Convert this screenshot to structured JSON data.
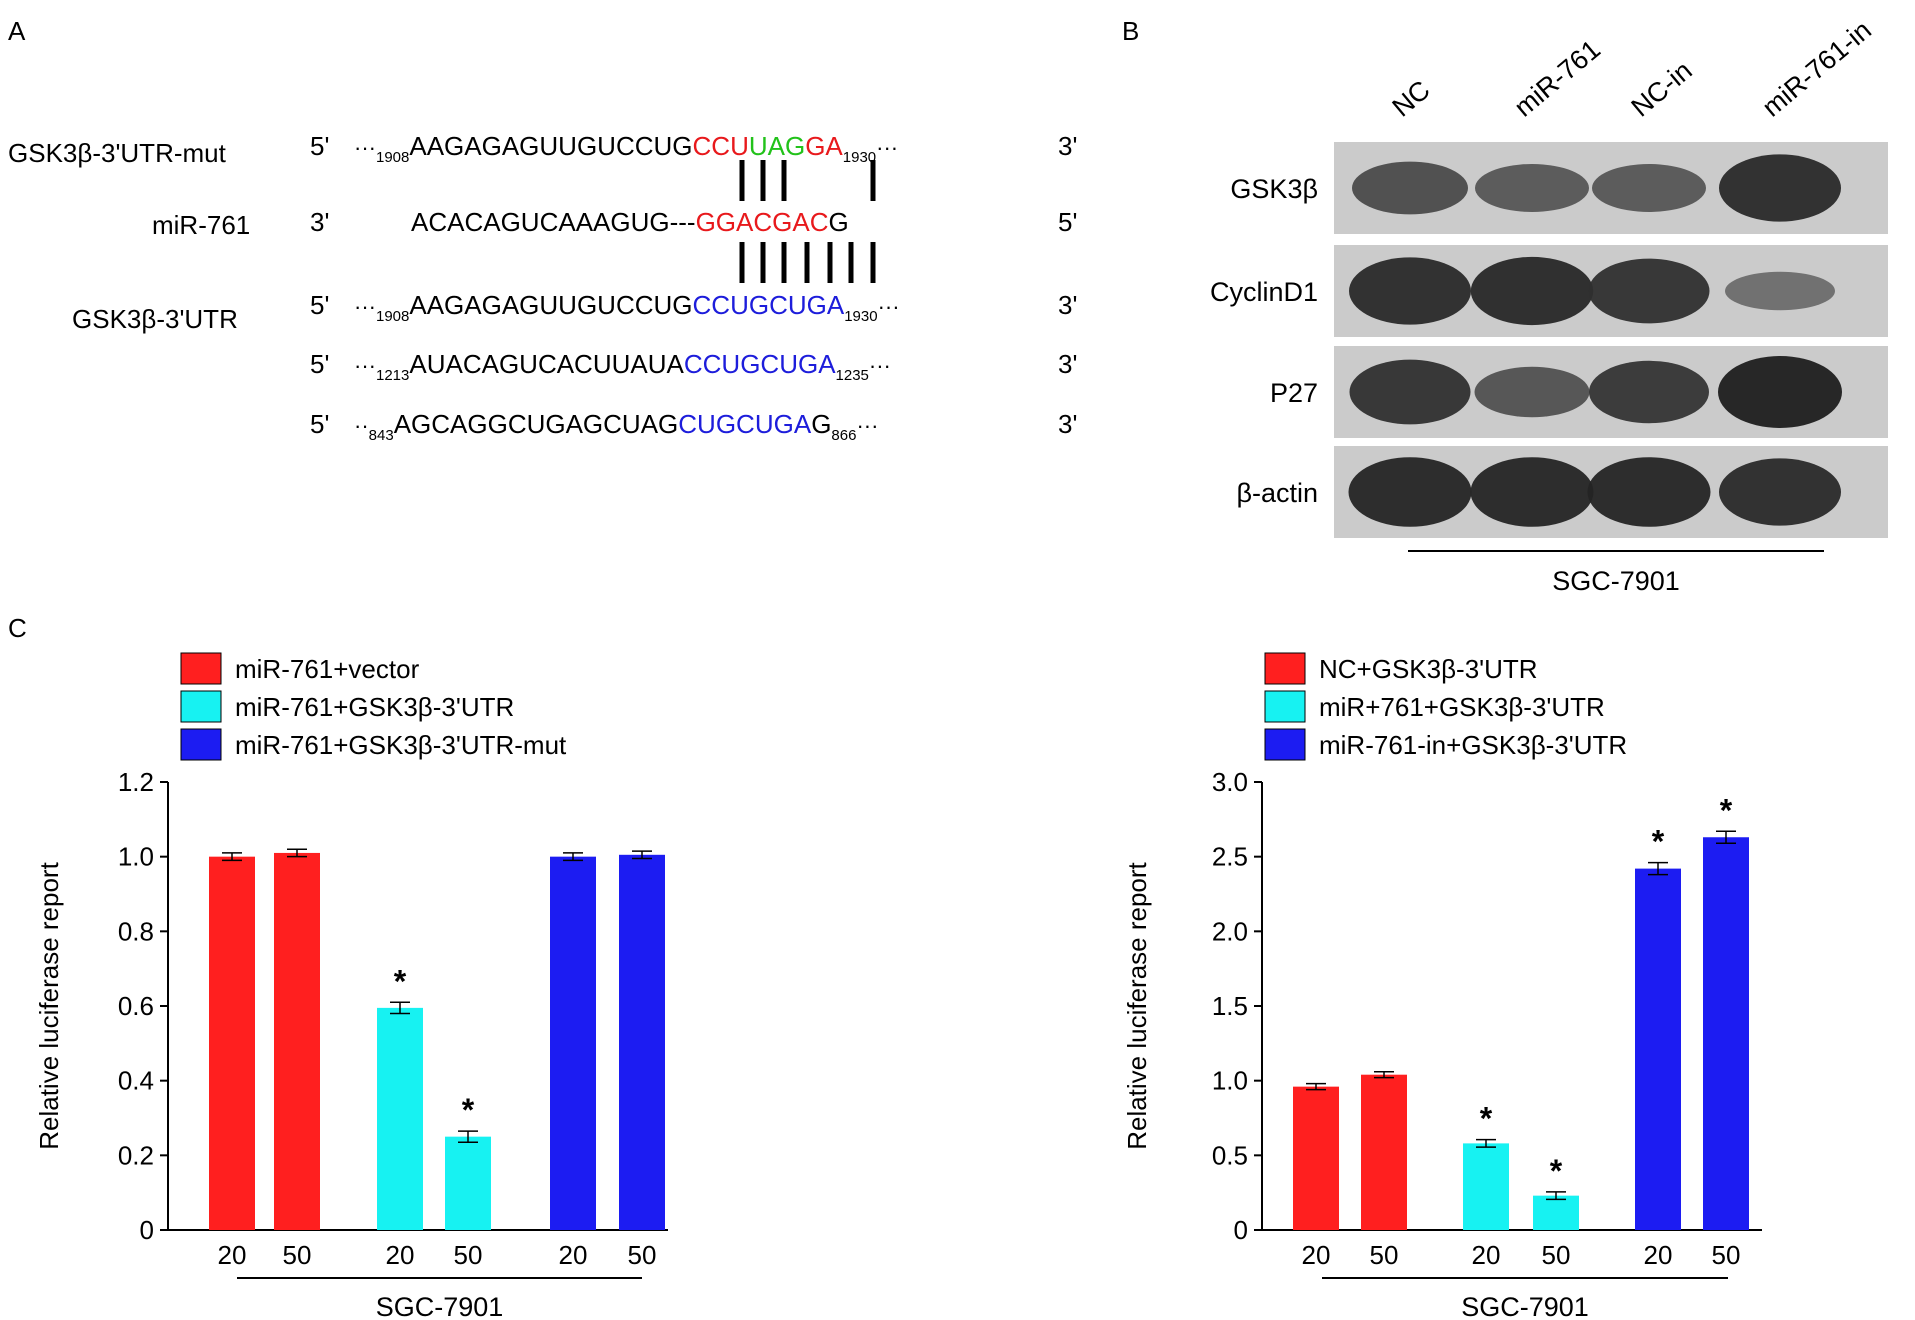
{
  "panels": {
    "a": "A",
    "b": "B",
    "c": "C"
  },
  "panel_a": {
    "rows": [
      {
        "label": "GSK3β-3'UTR-mut",
        "five": "5'",
        "three": "3'",
        "dots_pre": "···",
        "start": "1908",
        "segments": [
          {
            "text": "AAGAGAGUUGUCCUG",
            "color": "#000000"
          },
          {
            "text": "CCU",
            "color": "#e8191c"
          },
          {
            "text": "UAG",
            "color": "#22c21a"
          },
          {
            "text": "GA",
            "color": "#e8191c"
          }
        ],
        "end": "1930",
        "dots_post": "···"
      },
      {
        "label": "miR-761",
        "five": "3'",
        "three": "5'",
        "segments": [
          {
            "text": "ACACAGUCAAAGUG---",
            "color": "#000000"
          },
          {
            "text": "GGACGAC",
            "color": "#e8191c"
          },
          {
            "text": "G",
            "color": "#000000"
          }
        ]
      },
      {
        "label": "GSK3β-3'UTR",
        "five": "5'",
        "three": "3'",
        "dots_pre": "···",
        "start": "1908",
        "segments": [
          {
            "text": "AAGAGAGUUGUCCUG",
            "color": "#000000"
          },
          {
            "text": "CCUGCUGA",
            "color": "#1d1ddb"
          }
        ],
        "end": "1930",
        "dots_post": "···"
      },
      {
        "label": "",
        "five": "5'",
        "three": "3'",
        "dots_pre": "···",
        "start": "1213",
        "segments": [
          {
            "text": "AUACAGUCACUUAUA",
            "color": "#000000"
          },
          {
            "text": "CCUGCUGA",
            "color": "#1d1ddb"
          }
        ],
        "end": "1235",
        "dots_post": "···"
      },
      {
        "label": "",
        "five": "5'",
        "three": "3'",
        "dots_pre": "··",
        "start": "843",
        "segments": [
          {
            "text": "AGCAGGCUGAGCUAG",
            "color": "#000000"
          },
          {
            "text": "CUGCUGA",
            "color": "#1d1ddb"
          },
          {
            "text": "G",
            "color": "#000000"
          }
        ],
        "end": "866",
        "dots_post": "···"
      }
    ]
  },
  "panel_b": {
    "lanes": [
      "NC",
      "miR-761",
      "NC-in",
      "miR-761-in"
    ],
    "proteins": [
      {
        "name": "GSK3β",
        "intensity": [
          0.6,
          0.5,
          0.5,
          0.9
        ]
      },
      {
        "name": "CyclinD1",
        "intensity": [
          0.9,
          0.92,
          0.85,
          0.3
        ]
      },
      {
        "name": "P27",
        "intensity": [
          0.85,
          0.55,
          0.8,
          1.0
        ]
      },
      {
        "name": "β-actin",
        "intensity": [
          0.95,
          0.95,
          0.95,
          0.9
        ]
      }
    ],
    "cell_line": "SGC-7901"
  },
  "chart_data": [
    {
      "type": "bar",
      "categories": [
        "20",
        "50",
        "20",
        "50",
        "20",
        "50"
      ],
      "series": [
        {
          "name": "miR-761+vector",
          "color": "#ff1f1f",
          "values": [
            1.0,
            1.01,
            null,
            null,
            null,
            null
          ],
          "errors": [
            0.01,
            0.01,
            null,
            null,
            null,
            null
          ]
        },
        {
          "name": "miR-761+GSK3β-3'UTR",
          "color": "#17f2f2",
          "values": [
            null,
            null,
            0.595,
            0.25,
            null,
            null
          ],
          "errors": [
            null,
            null,
            0.015,
            0.015,
            null,
            null
          ]
        },
        {
          "name": "miR-761+GSK3β-3'UTR-mut",
          "color": "#1c1cf2",
          "values": [
            null,
            null,
            null,
            null,
            1.0,
            1.005
          ],
          "errors": [
            null,
            null,
            null,
            null,
            0.01,
            0.01
          ]
        }
      ],
      "significance": [
        "",
        "",
        "*",
        "*",
        "",
        ""
      ],
      "ylabel": "Relative luciferase report",
      "xlabel": "SGC-7901",
      "ylim": [
        0,
        1.2
      ],
      "yticks": [
        "0",
        "0.2",
        "0.4",
        "0.6",
        "0.8",
        "1.0",
        "1.2"
      ],
      "legend": "top-left"
    },
    {
      "type": "bar",
      "categories": [
        "20",
        "50",
        "20",
        "50",
        "20",
        "50"
      ],
      "series": [
        {
          "name": "NC+GSK3β-3'UTR",
          "color": "#ff1f1f",
          "values": [
            0.96,
            1.04,
            null,
            null,
            null,
            null
          ],
          "errors": [
            0.02,
            0.02,
            null,
            null,
            null,
            null
          ]
        },
        {
          "name": "miR+761+GSK3β-3'UTR",
          "color": "#17f2f2",
          "values": [
            null,
            null,
            0.58,
            0.23,
            null,
            null
          ],
          "errors": [
            null,
            null,
            0.025,
            0.025,
            null,
            null
          ]
        },
        {
          "name": "miR-761-in+GSK3β-3'UTR",
          "color": "#1c1cf2",
          "values": [
            null,
            null,
            null,
            null,
            2.42,
            2.63
          ],
          "errors": [
            null,
            null,
            null,
            null,
            0.04,
            0.04
          ]
        }
      ],
      "significance": [
        "",
        "",
        "*",
        "*",
        "*",
        "*"
      ],
      "ylabel": "Relative luciferase report",
      "xlabel": "SGC-7901",
      "ylim": [
        0,
        3.0
      ],
      "yticks": [
        "0",
        "0.5",
        "1.0",
        "1.5",
        "2.0",
        "2.5",
        "3.0"
      ],
      "legend": "top-left"
    }
  ]
}
